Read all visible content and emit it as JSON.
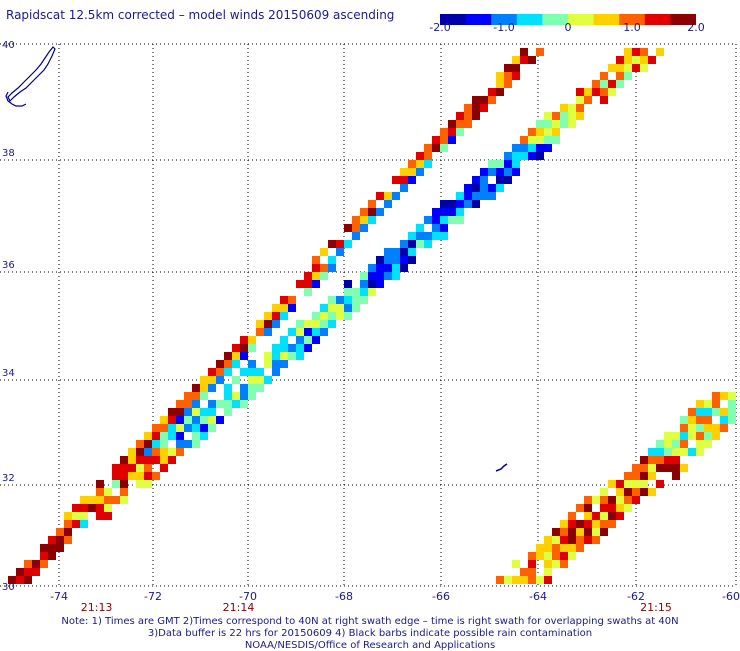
{
  "title": "Rapidscat 12.5km corrected – model winds 20150609 ascending",
  "colorbar": {
    "labels": [
      "-2.0",
      "-1.0",
      "0",
      "1.0",
      "2.0"
    ],
    "values": [
      -2.0,
      -1.0,
      0,
      1.0,
      2.0
    ],
    "range": [
      -2.0,
      2.0
    ],
    "colormap": [
      "#0000a8",
      "#0000ff",
      "#0080ff",
      "#00e0ff",
      "#80ffb0",
      "#e0ff40",
      "#ffd000",
      "#ff6000",
      "#e00000",
      "#8b0000"
    ]
  },
  "axes": {
    "lon_labels": [
      "-74",
      "-72",
      "-70",
      "-68",
      "-66",
      "-64",
      "-62",
      "-60"
    ],
    "lon_values": [
      -74,
      -72,
      -70,
      -68,
      -66,
      -64,
      -62,
      -60
    ],
    "lat_labels": [
      "30",
      "32",
      "34",
      "36",
      "38",
      "40"
    ],
    "lat_values": [
      30,
      32,
      34,
      36,
      38,
      40
    ],
    "lon_range": [
      -75,
      -60
    ],
    "lat_range": [
      30,
      40
    ],
    "grid": "dotted"
  },
  "times": [
    {
      "label": "21:13",
      "lon": -73.2
    },
    {
      "label": "21:14",
      "lon": -70.2
    },
    {
      "label": "21:15",
      "lon": -61.6
    }
  ],
  "notes": {
    "line1": "Note: 1) Times are GMT 2)Times correspond to 40N at right swath edge – time is right swath for overlapping swaths at 40N",
    "line2": "3)Data buffer is 22 hrs for 20150609 4) Black barbs indicate possible rain contamination",
    "line3": "NOAA/NESDIS/Office of Research and Applications"
  },
  "chart_data": {
    "type": "heatmap",
    "title": "Rapidscat 12.5km corrected – model winds 20150609 ascending",
    "variable_range": [
      -2.0,
      2.0
    ],
    "x_range": [
      -75,
      -60
    ],
    "y_range": [
      30,
      40
    ],
    "swaths": [
      {
        "name_hint": "west-left",
        "start_lon": -74.9,
        "start_lat": 30.2,
        "end_lon": -64.2,
        "end_lat": 39.9,
        "width_lon": 0.45
      },
      {
        "name_hint": "west-right",
        "start_lon": -73.3,
        "start_lat": 31.5,
        "end_lon": -61.8,
        "end_lat": 39.9,
        "width_lon": 0.9
      },
      {
        "name_hint": "east",
        "start_lon": -64.4,
        "start_lat": 30.0,
        "end_lon": -60.0,
        "end_lat": 33.8,
        "width_lon": 1.2
      }
    ]
  }
}
